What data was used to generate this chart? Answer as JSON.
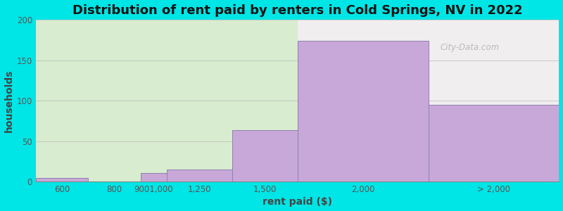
{
  "title": "Distribution of rent paid by renters in Cold Springs, NV in 2022",
  "xlabel": "rent paid ($)",
  "ylabel": "households",
  "tick_labels": [
    "600",
    "800",
    "9001,000",
    "1,250",
    "1,500",
    "2,000",
    "> 2,000"
  ],
  "tick_positions": [
    600,
    800,
    950,
    1125,
    1375,
    1750,
    2250
  ],
  "bar_lefts": [
    500,
    700,
    900,
    1000,
    1250,
    1500,
    2000
  ],
  "bar_rights": [
    700,
    900,
    1000,
    1250,
    1500,
    2000,
    2500
  ],
  "bar_heights": [
    5,
    0,
    11,
    15,
    64,
    174,
    95
  ],
  "bar_color": "#c8a8d8",
  "bar_edge_color": "#9080b0",
  "bg_color_left": "#d8ecd0",
  "bg_color_right": "#f0eeee",
  "outer_bg": "#00e5e5",
  "split_x": 1500,
  "xlim": [
    500,
    2500
  ],
  "ylim": [
    0,
    200
  ],
  "yticks": [
    0,
    50,
    100,
    150,
    200
  ],
  "title_fontsize": 13,
  "axis_label_fontsize": 10,
  "tick_fontsize": 8.5,
  "watermark": "City-Data.com"
}
